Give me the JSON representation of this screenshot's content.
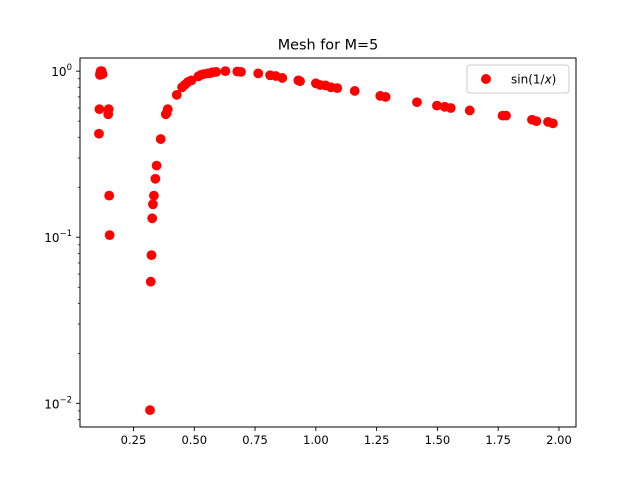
{
  "chart_data": {
    "type": "scatter",
    "title": "Mesh for M=5",
    "xlabel": "",
    "ylabel": "",
    "yscale": "log",
    "xlim": [
      0.03,
      2.07
    ],
    "ylim": [
      0.0072,
      1.2
    ],
    "grid": false,
    "legend_position": "top-right",
    "x_ticks": [
      {
        "value": 0.25,
        "label": "0.25"
      },
      {
        "value": 0.5,
        "label": "0.50"
      },
      {
        "value": 0.75,
        "label": "0.75"
      },
      {
        "value": 1.0,
        "label": "1.00"
      },
      {
        "value": 1.25,
        "label": "1.25"
      },
      {
        "value": 1.5,
        "label": "1.50"
      },
      {
        "value": 1.75,
        "label": "1.75"
      },
      {
        "value": 2.0,
        "label": "2.00"
      }
    ],
    "y_ticks": [
      {
        "value": 1,
        "base": "10",
        "exp": "0"
      },
      {
        "value": 0.1,
        "base": "10",
        "exp": "−1"
      },
      {
        "value": 0.01,
        "base": "10",
        "exp": "−2"
      }
    ],
    "series": [
      {
        "name": "sin(1/x)",
        "name_prefix": "sin(1/",
        "name_var": "x",
        "name_suffix": ")",
        "color": "#ff0000",
        "marker": "circle",
        "x": [
          0.108,
          0.11,
          0.112,
          0.113,
          0.115,
          0.117,
          0.119,
          0.123,
          0.146,
          0.148,
          0.15,
          0.152,
          0.318,
          0.321,
          0.324,
          0.327,
          0.33,
          0.334,
          0.34,
          0.345,
          0.362,
          0.383,
          0.387,
          0.391,
          0.428,
          0.45,
          0.462,
          0.474,
          0.488,
          0.517,
          0.527,
          0.539,
          0.555,
          0.567,
          0.575,
          0.59,
          0.628,
          0.677,
          0.692,
          0.763,
          0.812,
          0.835,
          0.862,
          0.928,
          0.935,
          1.0,
          1.018,
          1.04,
          1.062,
          1.088,
          1.16,
          1.265,
          1.287,
          1.416,
          1.498,
          1.53,
          1.555,
          1.633,
          1.768,
          1.782,
          1.889,
          1.907,
          1.955,
          1.975
        ],
        "y": [
          0.42,
          0.59,
          0.95,
          0.97,
          1.0,
          0.98,
          1.0,
          0.96,
          0.55,
          0.59,
          0.178,
          0.103,
          0.0091,
          0.054,
          0.078,
          0.13,
          0.158,
          0.178,
          0.225,
          0.27,
          0.39,
          0.55,
          0.56,
          0.59,
          0.72,
          0.8,
          0.83,
          0.86,
          0.88,
          0.93,
          0.95,
          0.96,
          0.97,
          0.975,
          0.985,
          0.99,
          1.0,
          0.995,
          0.99,
          0.97,
          0.945,
          0.935,
          0.91,
          0.88,
          0.87,
          0.845,
          0.825,
          0.82,
          0.8,
          0.79,
          0.76,
          0.71,
          0.7,
          0.65,
          0.62,
          0.61,
          0.6,
          0.58,
          0.54,
          0.54,
          0.51,
          0.5,
          0.495,
          0.485
        ]
      }
    ]
  }
}
